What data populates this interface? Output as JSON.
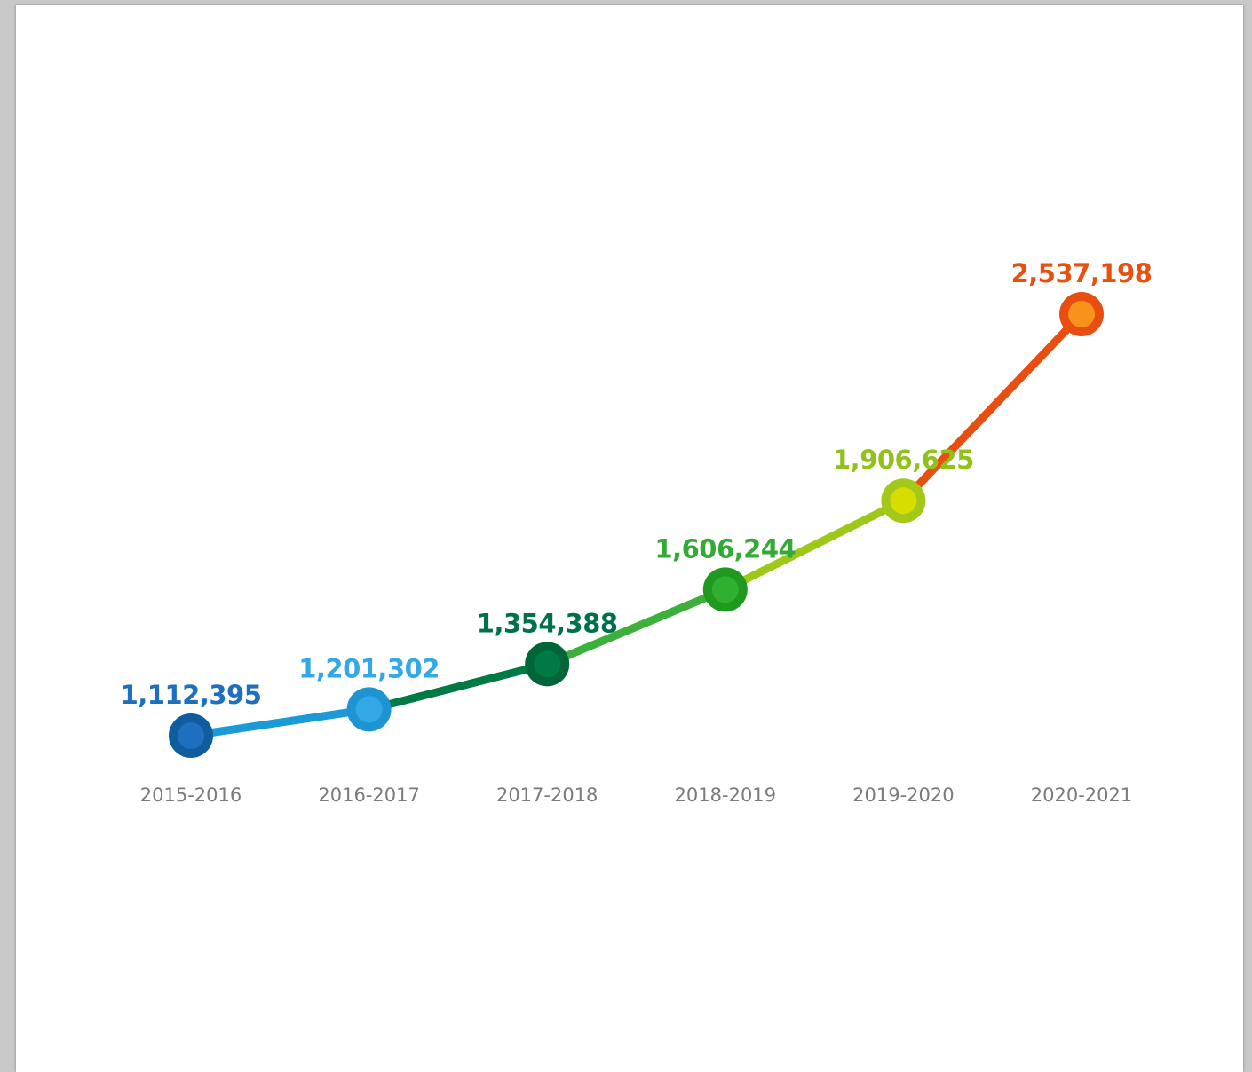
{
  "chart_data": {
    "type": "line",
    "title": "",
    "xlabel": "",
    "ylabel": "",
    "categories": [
      "2015-2016",
      "2016-2017",
      "2017-2018",
      "2018-2019",
      "2019-2020",
      "2020-2021"
    ],
    "values": [
      1112395,
      1201302,
      1354388,
      1606244,
      1906625,
      2537198
    ],
    "value_labels": [
      "1,112,395",
      "1,201,302",
      "1,354,388",
      "1,606,244",
      "1,906,625",
      "2,537,198"
    ],
    "point_colors": [
      {
        "outer": "#0f5c9e",
        "inner": "#1f6fbf",
        "label": "#1f6fbf"
      },
      {
        "outer": "#1e94d2",
        "inner": "#32a9e6",
        "label": "#32a9e6"
      },
      {
        "outer": "#00663a",
        "inner": "#007a45",
        "label": "#00704a"
      },
      {
        "outer": "#1f9a1f",
        "inner": "#2fb030",
        "label": "#33aa33"
      },
      {
        "outer": "#a3c81a",
        "inner": "#d7dd00",
        "label": "#93c11b"
      },
      {
        "outer": "#e84e0f",
        "inner": "#f7931a",
        "label": "#e8500f"
      }
    ],
    "segment_colors": [
      "#1a9ad6",
      "#007a45",
      "#3bb03a",
      "#9dc81a",
      "#e84e0f"
    ],
    "grid": false,
    "legend": "none"
  }
}
